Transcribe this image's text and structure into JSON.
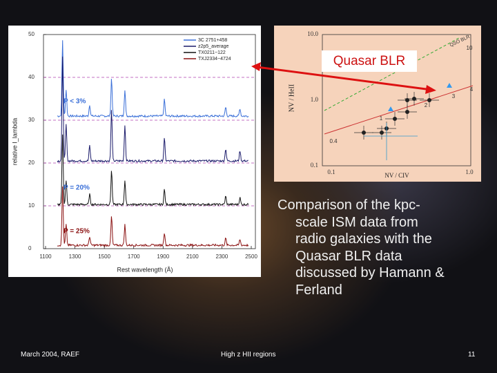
{
  "left_plot": {
    "ylabel": "relative I_lambda",
    "xlabel": "Rest wavelength (Å)",
    "yticks": [
      "50",
      "40",
      "30",
      "20",
      "10",
      "0"
    ],
    "xticks": [
      "1100",
      "1300",
      "1500",
      "1700",
      "1900",
      "2100",
      "2300",
      "2500"
    ],
    "legend": [
      "3C 2751+458",
      "z2p5_average",
      "TX0211−122",
      "TXJ2334−4724"
    ],
    "annotations": [
      "P < 3%",
      "P = 20%",
      "P = 25%"
    ]
  },
  "right_plot": {
    "ylabel": "NV / HeII",
    "xlabel": "NV / CIV",
    "yticks": [
      "10.0",
      "1.0",
      "0.1"
    ],
    "xticks": [
      "0.1",
      "1.0"
    ],
    "line_label": "QSO BLR",
    "point_labels": [
      "10",
      "4",
      "3",
      "2",
      "1",
      "0.4"
    ]
  },
  "callout": "Quasar BLR",
  "body": [
    "Comparison of the kpc-",
    "scale ISM data from",
    "radio galaxies with the",
    "Quasar BLR data",
    "discussed by Hamann &",
    "Ferland"
  ],
  "footer": {
    "left": "March 2004, RAEF",
    "center": "High z HII regions",
    "right": "11"
  }
}
